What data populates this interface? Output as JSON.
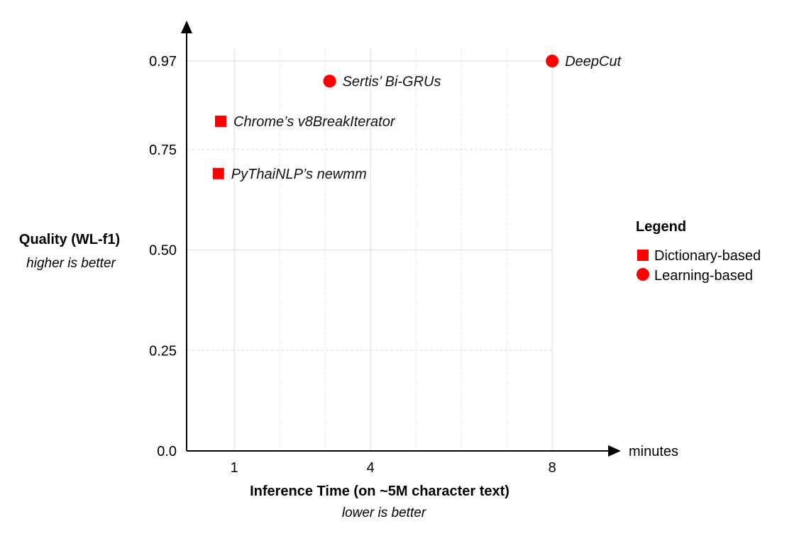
{
  "chart_data": {
    "type": "scatter",
    "title": "",
    "xlabel": "Inference Time (on ~5M character text)",
    "xlabel_note": "lower is better",
    "x_unit": "minutes",
    "ylabel": "Quality (WL-f1)",
    "ylabel_note": "higher is better",
    "x_ticks": [
      1,
      4,
      8
    ],
    "y_ticks": [
      "0.0",
      "0.25",
      "0.50",
      "0.75",
      "0.97"
    ],
    "xlim": [
      -0.05,
      9.2
    ],
    "ylim": [
      0,
      1.06
    ],
    "grid": true,
    "legend_placement": "right",
    "legend_title": "Legend",
    "series": [
      {
        "name": "Dictionary-based",
        "marker": "square",
        "color": "#ff0000",
        "points": [
          {
            "label": "Chrome’s v8BreakIterator",
            "x": 0.7,
            "y": 0.82
          },
          {
            "label": "PyThaiNLP’s newmm",
            "x": 0.65,
            "y": 0.69
          }
        ]
      },
      {
        "name": "Learning-based",
        "marker": "circle",
        "color": "#ff0000",
        "points": [
          {
            "label": "Sertis’ Bi-GRUs",
            "x": 3.1,
            "y": 0.92
          },
          {
            "label": "DeepCut",
            "x": 8.0,
            "y": 0.97
          }
        ]
      }
    ]
  }
}
